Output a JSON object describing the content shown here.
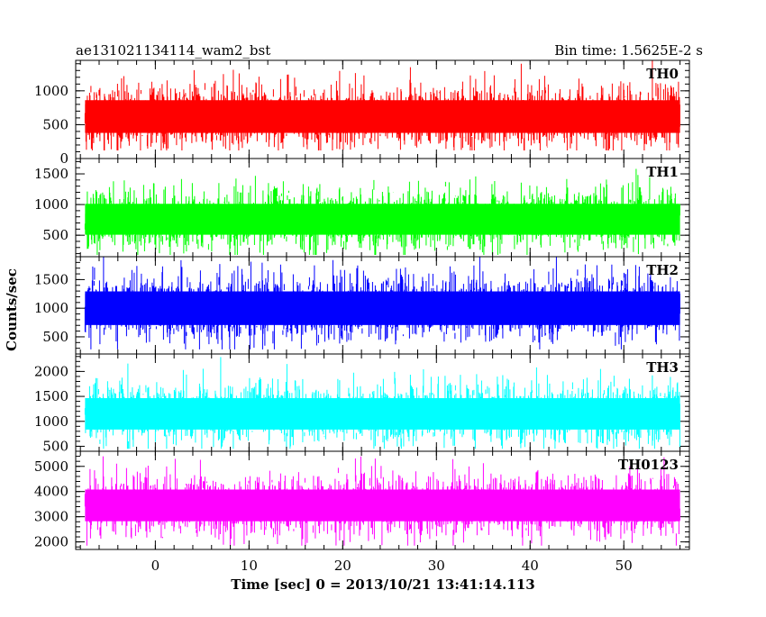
{
  "chart_data": {
    "type": "line",
    "title": "ae131021134114_wam2_bst",
    "subtitle": "Bin time: 1.5625E-2 s",
    "xlabel": "Time [sec] 0 = 2013/10/21 13:41:14.113",
    "ylabel": "Counts/sec",
    "xlim": [
      -8.5,
      57
    ],
    "x_data_range": [
      -7.5,
      56
    ],
    "xticks": [
      0,
      10,
      20,
      30,
      40,
      50
    ],
    "grid": false,
    "panels": [
      {
        "name": "TH0",
        "color": "#ff0000",
        "ylim": [
          0,
          1450
        ],
        "yticks": [
          0,
          500,
          1000
        ],
        "mean": 620,
        "spread": 230,
        "band_low": 120,
        "band_high": 1450
      },
      {
        "name": "TH1",
        "color": "#00ff00",
        "ylim": [
          150,
          1750
        ],
        "yticks": [
          500,
          1000,
          1500
        ],
        "mean": 760,
        "spread": 240,
        "band_low": 180,
        "band_high": 1700
      },
      {
        "name": "TH2",
        "color": "#0000ff",
        "ylim": [
          200,
          1900
        ],
        "yticks": [
          500,
          1000,
          1500
        ],
        "mean": 1000,
        "spread": 280,
        "band_low": 280,
        "band_high": 1900
      },
      {
        "name": "TH3",
        "color": "#00ffff",
        "ylim": [
          400,
          2350
        ],
        "yticks": [
          500,
          1000,
          1500,
          2000
        ],
        "mean": 1150,
        "spread": 300,
        "band_low": 450,
        "band_high": 2300
      },
      {
        "name": "TH0123",
        "color": "#ff00ff",
        "ylim": [
          1700,
          5600
        ],
        "yticks": [
          2000,
          3000,
          4000,
          5000
        ],
        "mean": 3450,
        "spread": 600,
        "band_low": 1850,
        "band_high": 5400
      }
    ]
  }
}
